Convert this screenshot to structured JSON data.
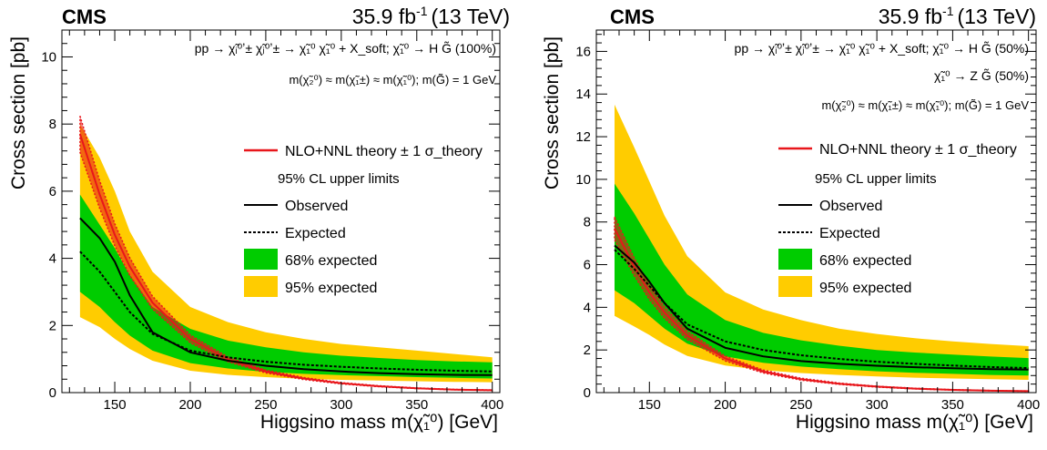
{
  "chart_data": [
    {
      "type": "line",
      "cms_label": "CMS",
      "lumi_label": "35.9 fb",
      "lumi_sup": "-1",
      "energy_label": "(13 TeV)",
      "process_text": "pp → χ̃ᵢ⁰ʼ± χ̃ⱼ⁰ʼ± → χ̃₁⁰ χ̃₁⁰ + X_soft; χ̃₁⁰ → H G̃ (100%)",
      "process_line2": "",
      "mass_text": "m(χ̃₂⁰) ≈ m(χ̃₁±) ≈ m(χ̃₁⁰);  m(G̃) = 1 GeV",
      "xlabel": "Higgsino mass m(χ̃₁⁰) [GeV]",
      "ylabel": "Cross section [pb]",
      "xlim": [
        115,
        405
      ],
      "ylim": [
        0,
        10.8
      ],
      "xticks": [
        150,
        200,
        250,
        300,
        350,
        400
      ],
      "yticks": [
        0,
        2,
        4,
        6,
        8,
        10
      ],
      "legend": {
        "theory": "NLO+NNL theory ± 1 σ_theory",
        "header": "95% CL upper limits",
        "observed": "Observed",
        "expected": "Expected",
        "band68": "68% expected",
        "band95": "95% expected"
      },
      "colors": {
        "theory": "#e8161b",
        "band68": "#00cc00",
        "band95": "#ffcc00",
        "line": "#000000"
      },
      "x": [
        127,
        140,
        150,
        160,
        175,
        200,
        225,
        250,
        275,
        300,
        325,
        350,
        375,
        400
      ],
      "observed": [
        5.2,
        4.6,
        3.9,
        2.9,
        1.8,
        1.2,
        0.95,
        0.8,
        0.7,
        0.63,
        0.58,
        0.55,
        0.53,
        0.52
      ],
      "expected": [
        4.2,
        3.6,
        3.0,
        2.4,
        1.75,
        1.25,
        1.05,
        0.92,
        0.83,
        0.77,
        0.72,
        0.68,
        0.65,
        0.63
      ],
      "band68_low": [
        3.0,
        2.55,
        2.1,
        1.7,
        1.25,
        0.88,
        0.72,
        0.62,
        0.56,
        0.52,
        0.49,
        0.46,
        0.44,
        0.42
      ],
      "band68_high": [
        5.9,
        5.0,
        4.3,
        3.5,
        2.55,
        1.9,
        1.55,
        1.35,
        1.2,
        1.1,
        1.03,
        0.97,
        0.93,
        0.9
      ],
      "band95_low": [
        2.25,
        1.95,
        1.6,
        1.3,
        0.95,
        0.65,
        0.53,
        0.46,
        0.41,
        0.38,
        0.36,
        0.34,
        0.32,
        0.31
      ],
      "band95_high": [
        8.0,
        7.0,
        6.0,
        4.8,
        3.6,
        2.55,
        2.1,
        1.8,
        1.6,
        1.45,
        1.35,
        1.25,
        1.15,
        1.05
      ],
      "theory": [
        7.7,
        5.9,
        4.7,
        3.75,
        2.68,
        1.6,
        0.99,
        0.63,
        0.42,
        0.28,
        0.19,
        0.13,
        0.09,
        0.07
      ]
    },
    {
      "type": "line",
      "cms_label": "CMS",
      "lumi_label": "35.9 fb",
      "lumi_sup": "-1",
      "energy_label": "(13 TeV)",
      "process_text": "pp → χ̃ᵢ⁰ʼ± χ̃ⱼ⁰ʼ± → χ̃₁⁰ χ̃₁⁰ + X_soft; χ̃₁⁰ → H G̃ (50%)",
      "process_line2": "χ̃₁⁰ → Z G̃ (50%)",
      "mass_text": "m(χ̃₂⁰) ≈ m(χ̃₁±) ≈ m(χ̃₁⁰);  m(G̃) = 1 GeV",
      "xlabel": "Higgsino mass m(χ̃₁⁰) [GeV]",
      "ylabel": "Cross section [pb]",
      "xlim": [
        115,
        405
      ],
      "ylim": [
        0,
        17
      ],
      "xticks": [
        150,
        200,
        250,
        300,
        350,
        400
      ],
      "yticks": [
        0,
        2,
        4,
        6,
        8,
        10,
        12,
        14,
        16
      ],
      "legend": {
        "theory": "NLO+NNL theory ± 1 σ_theory",
        "header": "95% CL upper limits",
        "observed": "Observed",
        "expected": "Expected",
        "band68": "68% expected",
        "band95": "95% expected"
      },
      "colors": {
        "theory": "#e8161b",
        "band68": "#00cc00",
        "band95": "#ffcc00",
        "line": "#000000"
      },
      "x": [
        127,
        140,
        150,
        160,
        175,
        200,
        225,
        250,
        275,
        300,
        325,
        350,
        375,
        400
      ],
      "observed": [
        6.9,
        6.1,
        5.2,
        4.2,
        3.0,
        2.1,
        1.7,
        1.48,
        1.35,
        1.26,
        1.19,
        1.14,
        1.1,
        1.08
      ],
      "expected": [
        6.7,
        5.8,
        5.0,
        4.2,
        3.2,
        2.4,
        2.0,
        1.75,
        1.58,
        1.45,
        1.35,
        1.27,
        1.2,
        1.15
      ],
      "band68_low": [
        4.8,
        4.2,
        3.6,
        3.0,
        2.3,
        1.7,
        1.4,
        1.22,
        1.1,
        1.0,
        0.93,
        0.88,
        0.83,
        0.8
      ],
      "band68_high": [
        9.8,
        8.4,
        7.2,
        6.0,
        4.6,
        3.4,
        2.8,
        2.45,
        2.2,
        2.0,
        1.88,
        1.78,
        1.69,
        1.62
      ],
      "band95_low": [
        3.6,
        3.1,
        2.7,
        2.25,
        1.72,
        1.27,
        1.05,
        0.92,
        0.83,
        0.76,
        0.7,
        0.66,
        0.63,
        0.6
      ],
      "band95_high": [
        13.5,
        11.5,
        9.9,
        8.3,
        6.4,
        4.7,
        3.9,
        3.4,
        3.0,
        2.75,
        2.55,
        2.4,
        2.28,
        2.18
      ],
      "theory": [
        7.7,
        5.9,
        4.7,
        3.75,
        2.68,
        1.6,
        0.99,
        0.63,
        0.42,
        0.28,
        0.19,
        0.13,
        0.09,
        0.07
      ]
    }
  ]
}
